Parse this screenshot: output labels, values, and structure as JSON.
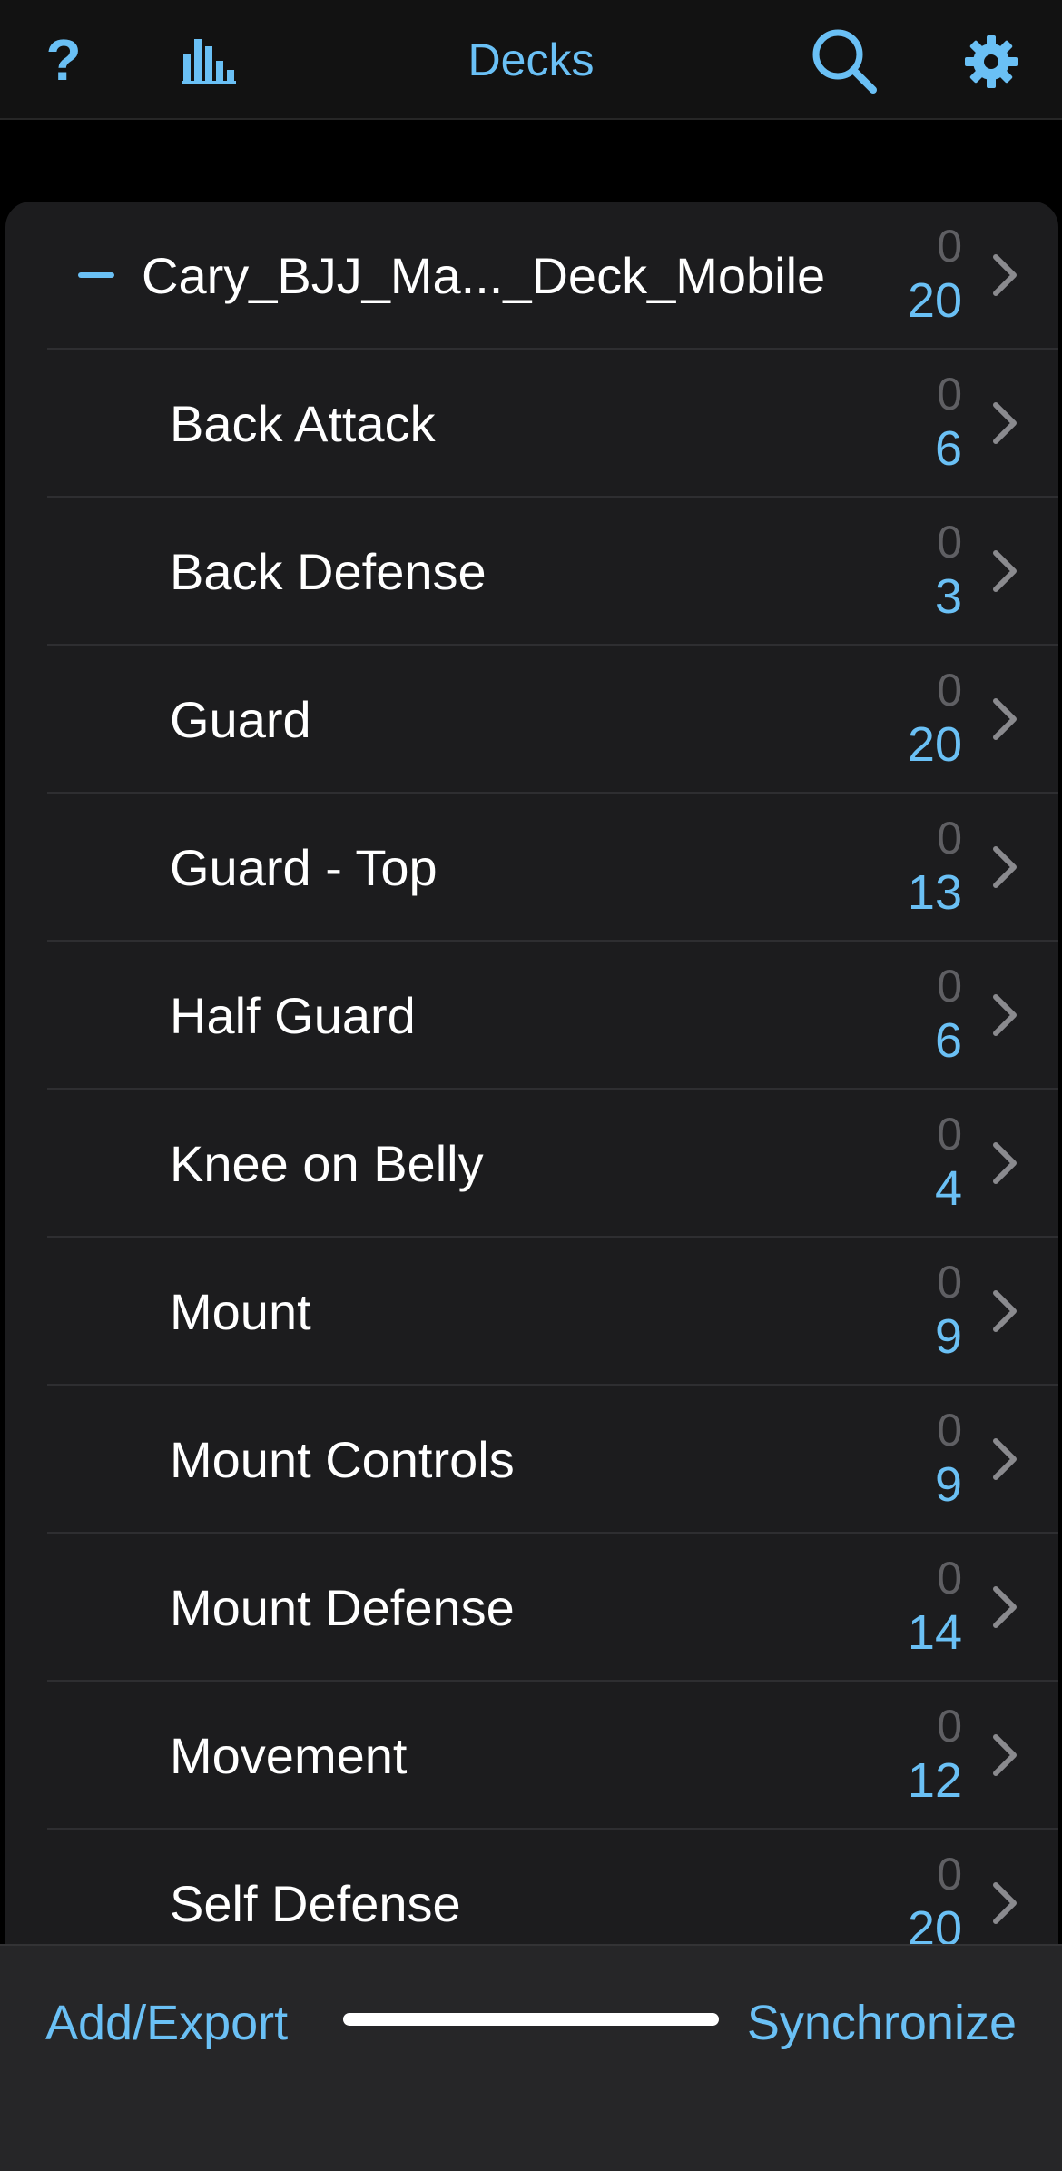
{
  "header": {
    "title": "Decks",
    "help_label": "?",
    "icons": {
      "help": "help-icon",
      "stats": "bar-chart-icon",
      "search": "search-icon",
      "settings": "gear-icon"
    },
    "accent_color": "#6ac0f5"
  },
  "deck_list": {
    "parent": {
      "name": "Cary_BJJ_Ma..._Deck_Mobile",
      "new_count": "0",
      "due_count": "20"
    },
    "children": [
      {
        "name": "Back Attack",
        "new_count": "0",
        "due_count": "6"
      },
      {
        "name": "Back Defense",
        "new_count": "0",
        "due_count": "3"
      },
      {
        "name": "Guard",
        "new_count": "0",
        "due_count": "20"
      },
      {
        "name": "Guard - Top",
        "new_count": "0",
        "due_count": "13"
      },
      {
        "name": "Half Guard",
        "new_count": "0",
        "due_count": "6"
      },
      {
        "name": "Knee on Belly",
        "new_count": "0",
        "due_count": "4"
      },
      {
        "name": "Mount",
        "new_count": "0",
        "due_count": "9"
      },
      {
        "name": "Mount Controls",
        "new_count": "0",
        "due_count": "9"
      },
      {
        "name": "Mount Defense",
        "new_count": "0",
        "due_count": "14"
      },
      {
        "name": "Movement",
        "new_count": "0",
        "due_count": "12"
      },
      {
        "name": "Self Defense",
        "new_count": "0",
        "due_count": "20"
      }
    ]
  },
  "footer": {
    "add_export_label": "Add/Export",
    "synchronize_label": "Synchronize"
  }
}
